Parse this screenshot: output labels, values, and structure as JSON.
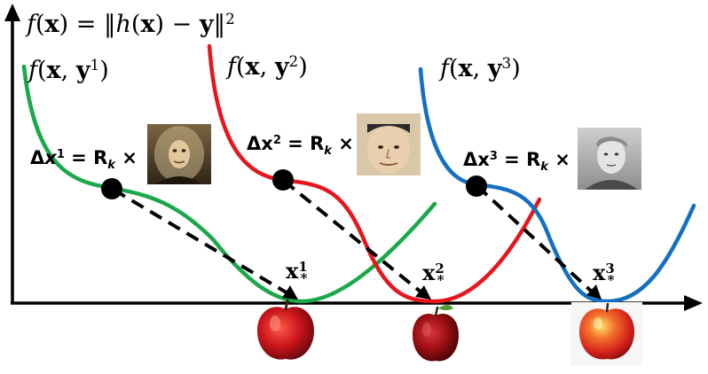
{
  "labels": {
    "main_formula": {
      "f": "f",
      "x": "x",
      "eq": " = ‖",
      "h": "h",
      "minus": " − ",
      "y": "y",
      "close": "‖",
      "power": "2"
    },
    "curve1": {
      "f": "f",
      "x": "x",
      "y": "y",
      "sup": "1"
    },
    "curve2": {
      "f": "f",
      "x": "x",
      "y": "y",
      "sup": "2"
    },
    "curve3": {
      "f": "f",
      "x": "x",
      "y": "y",
      "sup": "3"
    },
    "delta1": {
      "delta": "Δ",
      "x": "x",
      "sup": "1",
      "eq": " = ",
      "R": "R",
      "sub": "k",
      "times": " ×"
    },
    "delta2": {
      "delta": "Δ",
      "x": "x",
      "sup": "2",
      "eq": " = ",
      "R": "R",
      "sub": "k",
      "times": " ×"
    },
    "delta3": {
      "delta": "Δ",
      "x": "x",
      "sup": "3",
      "eq": " = ",
      "R": "R",
      "sub": "k",
      "times": " ×"
    },
    "xstar1": {
      "x": "x",
      "sub": "*",
      "sup": "1"
    },
    "xstar2": {
      "x": "x",
      "sub": "*",
      "sup": "2"
    },
    "xstar3": {
      "x": "x",
      "sub": "*",
      "sup": "3"
    }
  },
  "colors": {
    "curve1": "#1ba84a",
    "curve2": "#e8161c",
    "curve3": "#1470c0",
    "axis": "#000000"
  },
  "icons": {
    "portrait1": "newton-portrait",
    "portrait2": "gauss-portrait",
    "portrait3": "portrait-engraving",
    "apple1": "red-apple",
    "apple2": "dark-red-apple",
    "apple3": "red-yellow-apple"
  }
}
